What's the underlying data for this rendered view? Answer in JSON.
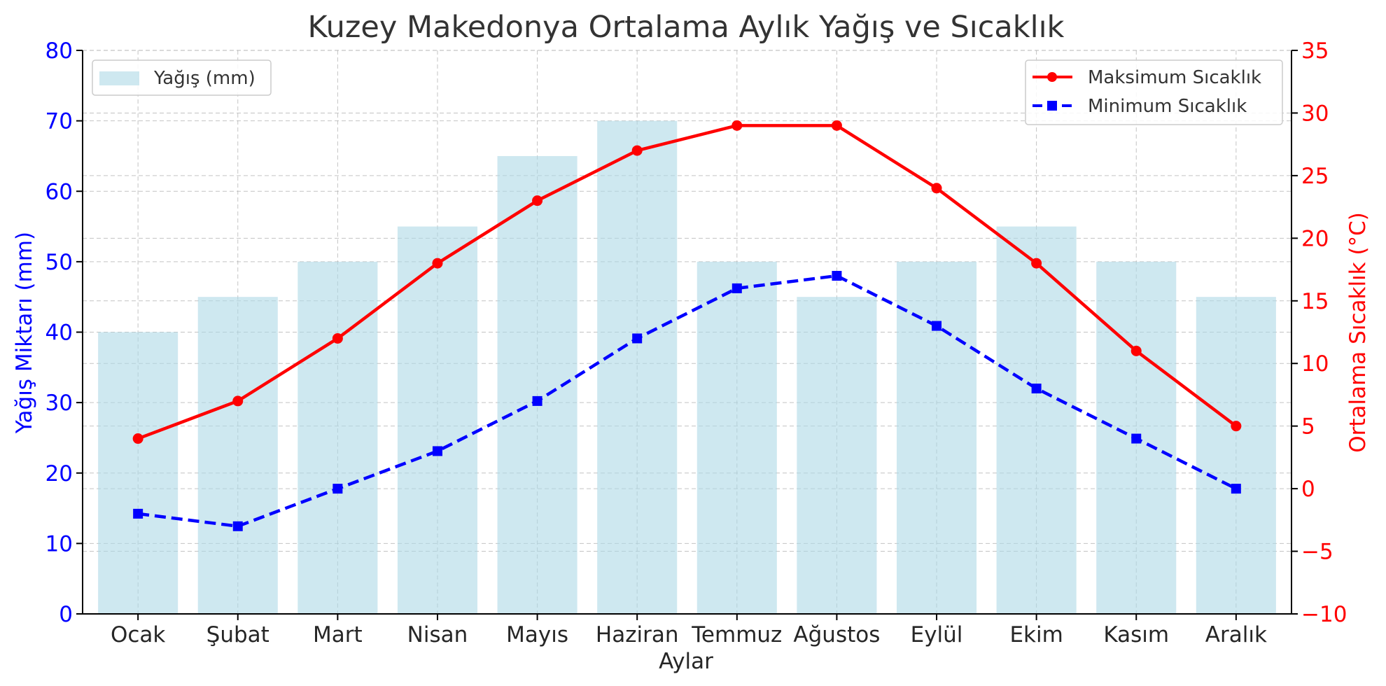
{
  "chart_data": {
    "type": "bar",
    "title": "Kuzey Makedonya Ortalama Aylık Yağış ve Sıcaklık",
    "xlabel": "Aylar",
    "ylabel": "Yağış Miktarı (mm)",
    "ylabel_right": "Ortalama Sıcaklık (°C)",
    "categories": [
      "Ocak",
      "Şubat",
      "Mart",
      "Nisan",
      "Mayıs",
      "Haziran",
      "Temmuz",
      "Ağustos",
      "Eylül",
      "Ekim",
      "Kasım",
      "Aralık"
    ],
    "ylim": [
      0,
      80
    ],
    "y_ticks": [
      0,
      10,
      20,
      30,
      40,
      50,
      60,
      70,
      80
    ],
    "ylim_right": [
      -10,
      35
    ],
    "y_right_ticks": [
      "−10",
      "−5",
      "0",
      "5",
      "10",
      "15",
      "20",
      "25",
      "30",
      "35"
    ],
    "y_right_tick_values": [
      -10,
      -5,
      0,
      5,
      10,
      15,
      20,
      25,
      30,
      35
    ],
    "grid": true,
    "series": [
      {
        "name": "Yağış (mm)",
        "type": "bar",
        "axis": "left",
        "color": "#add8e6",
        "values": [
          40,
          45,
          50,
          55,
          65,
          70,
          50,
          45,
          50,
          55,
          50,
          45
        ]
      },
      {
        "name": "Maksimum Sıcaklık",
        "type": "line",
        "axis": "right",
        "color": "#ff0000",
        "marker": "circle",
        "line_style": "solid",
        "values": [
          4,
          7,
          12,
          18,
          23,
          27,
          29,
          29,
          24,
          18,
          11,
          5
        ]
      },
      {
        "name": "Minimum Sıcaklık",
        "type": "line",
        "axis": "right",
        "color": "#0000ff",
        "marker": "square",
        "line_style": "dashed",
        "values": [
          -2,
          -3,
          0,
          3,
          7,
          12,
          16,
          17,
          13,
          8,
          4,
          0
        ]
      }
    ],
    "legend_bar_position": "top-left",
    "legend_lines_position": "top-right",
    "left_axis_color": "#0000ff",
    "right_axis_color": "#ff0000"
  }
}
